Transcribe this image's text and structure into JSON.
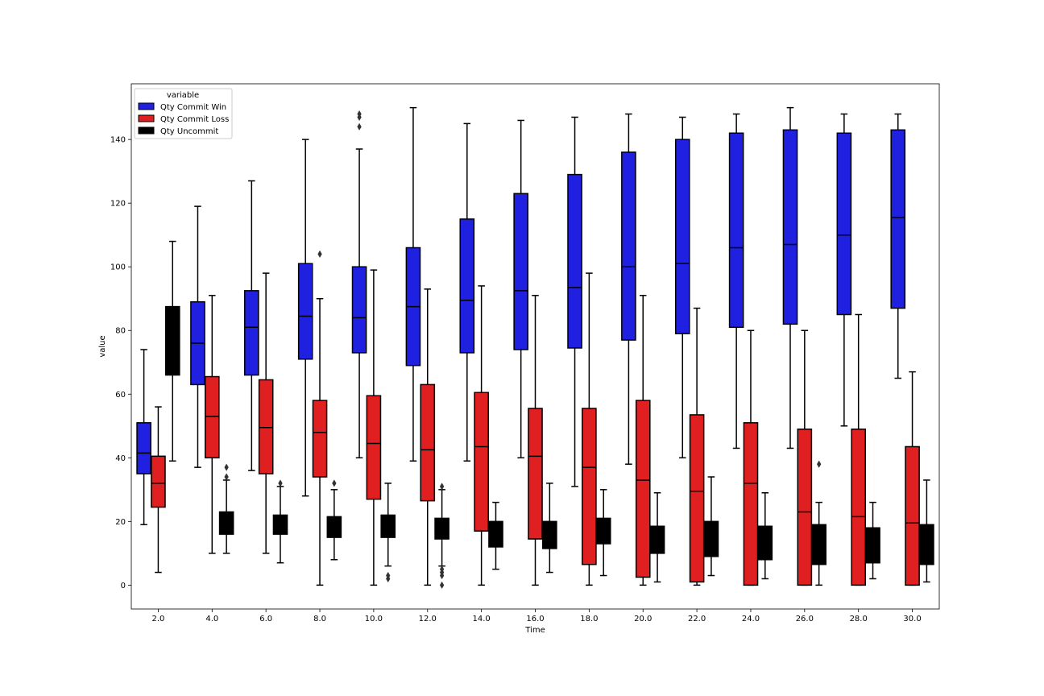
{
  "chart_data": {
    "type": "box",
    "xlabel": "Time",
    "ylabel": "value",
    "ylim": [
      -7.5,
      157.5
    ],
    "yticks": [
      0,
      20,
      40,
      60,
      80,
      100,
      120,
      140
    ],
    "categories": [
      "2.0",
      "4.0",
      "6.0",
      "8.0",
      "10.0",
      "12.0",
      "14.0",
      "16.0",
      "18.0",
      "20.0",
      "22.0",
      "24.0",
      "26.0",
      "28.0",
      "30.0"
    ],
    "legend": {
      "title": "variable",
      "placement": "top-left",
      "entries": [
        "Qty Commit Win",
        "Qty Commit Loss",
        "Qty Uncommit"
      ]
    },
    "series": [
      {
        "name": "Qty Commit Win",
        "color": "#2020e0",
        "boxes": [
          {
            "wlo": 19,
            "q1": 35,
            "med": 41.5,
            "q3": 51,
            "whi": 74,
            "fliers": []
          },
          {
            "wlo": 37,
            "q1": 63,
            "med": 76,
            "q3": 89,
            "whi": 119,
            "fliers": []
          },
          {
            "wlo": 36,
            "q1": 66,
            "med": 81,
            "q3": 92.5,
            "whi": 127,
            "fliers": []
          },
          {
            "wlo": 28,
            "q1": 71,
            "med": 84.5,
            "q3": 101,
            "whi": 140,
            "fliers": []
          },
          {
            "wlo": 40,
            "q1": 73,
            "med": 84,
            "q3": 100,
            "whi": 137,
            "fliers": [
              144,
              147,
              148
            ]
          },
          {
            "wlo": 39,
            "q1": 69,
            "med": 87.5,
            "q3": 106,
            "whi": 150,
            "fliers": []
          },
          {
            "wlo": 39,
            "q1": 73,
            "med": 89.5,
            "q3": 115,
            "whi": 145,
            "fliers": []
          },
          {
            "wlo": 40,
            "q1": 74,
            "med": 92.5,
            "q3": 123,
            "whi": 146,
            "fliers": []
          },
          {
            "wlo": 31,
            "q1": 74.5,
            "med": 93.5,
            "q3": 129,
            "whi": 147,
            "fliers": []
          },
          {
            "wlo": 38,
            "q1": 77,
            "med": 100,
            "q3": 136,
            "whi": 148,
            "fliers": []
          },
          {
            "wlo": 40,
            "q1": 79,
            "med": 101,
            "q3": 140,
            "whi": 147,
            "fliers": []
          },
          {
            "wlo": 43,
            "q1": 81,
            "med": 106,
            "q3": 142,
            "whi": 148,
            "fliers": []
          },
          {
            "wlo": 43,
            "q1": 82,
            "med": 107,
            "q3": 143,
            "whi": 150,
            "fliers": []
          },
          {
            "wlo": 50,
            "q1": 85,
            "med": 110,
            "q3": 142,
            "whi": 148,
            "fliers": []
          },
          {
            "wlo": 65,
            "q1": 87,
            "med": 115.5,
            "q3": 143,
            "whi": 148,
            "fliers": []
          }
        ]
      },
      {
        "name": "Qty Commit Loss",
        "color": "#e02020",
        "boxes": [
          {
            "wlo": 4,
            "q1": 24.5,
            "med": 32,
            "q3": 40.5,
            "whi": 56,
            "fliers": []
          },
          {
            "wlo": 10,
            "q1": 40,
            "med": 53,
            "q3": 65.5,
            "whi": 91,
            "fliers": []
          },
          {
            "wlo": 10,
            "q1": 35,
            "med": 49.5,
            "q3": 64.5,
            "whi": 98,
            "fliers": []
          },
          {
            "wlo": 0,
            "q1": 34,
            "med": 48,
            "q3": 58,
            "whi": 90,
            "fliers": [
              104
            ]
          },
          {
            "wlo": 0,
            "q1": 27,
            "med": 44.5,
            "q3": 59.5,
            "whi": 99,
            "fliers": []
          },
          {
            "wlo": 0,
            "q1": 26.5,
            "med": 42.5,
            "q3": 63,
            "whi": 93,
            "fliers": []
          },
          {
            "wlo": 0,
            "q1": 17,
            "med": 43.5,
            "q3": 60.5,
            "whi": 94,
            "fliers": []
          },
          {
            "wlo": 0,
            "q1": 14.5,
            "med": 40.5,
            "q3": 55.5,
            "whi": 91,
            "fliers": []
          },
          {
            "wlo": 0,
            "q1": 6.5,
            "med": 37,
            "q3": 55.5,
            "whi": 98,
            "fliers": []
          },
          {
            "wlo": 0,
            "q1": 2.5,
            "med": 33,
            "q3": 58,
            "whi": 91,
            "fliers": []
          },
          {
            "wlo": 0,
            "q1": 1,
            "med": 29.5,
            "q3": 53.5,
            "whi": 87,
            "fliers": []
          },
          {
            "wlo": 0,
            "q1": 0,
            "med": 32,
            "q3": 51,
            "whi": 80,
            "fliers": []
          },
          {
            "wlo": 0,
            "q1": 0,
            "med": 23,
            "q3": 49,
            "whi": 80,
            "fliers": []
          },
          {
            "wlo": 0,
            "q1": 0,
            "med": 21.5,
            "q3": 49,
            "whi": 85,
            "fliers": []
          },
          {
            "wlo": 0,
            "q1": 0,
            "med": 19.5,
            "q3": 43.5,
            "whi": 67,
            "fliers": []
          }
        ]
      },
      {
        "name": "Qty Uncommit",
        "color": "#000000",
        "boxes": [
          {
            "wlo": 39,
            "q1": 66,
            "med": 76.5,
            "q3": 87.5,
            "whi": 108,
            "fliers": []
          },
          {
            "wlo": 10,
            "q1": 16,
            "med": 19.5,
            "q3": 23,
            "whi": 33,
            "fliers": [
              34,
              37
            ]
          },
          {
            "wlo": 7,
            "q1": 16,
            "med": 19,
            "q3": 22,
            "whi": 31,
            "fliers": [
              32
            ]
          },
          {
            "wlo": 8,
            "q1": 15,
            "med": 18,
            "q3": 21.5,
            "whi": 30,
            "fliers": [
              32
            ]
          },
          {
            "wlo": 6,
            "q1": 15,
            "med": 18.5,
            "q3": 22,
            "whi": 32,
            "fliers": [
              2,
              3
            ]
          },
          {
            "wlo": 6,
            "q1": 14.5,
            "med": 17.5,
            "q3": 21,
            "whi": 30,
            "fliers": [
              0,
              3,
              4,
              5,
              31
            ]
          },
          {
            "wlo": 5,
            "q1": 12,
            "med": 16,
            "q3": 20,
            "whi": 26,
            "fliers": []
          },
          {
            "wlo": 4,
            "q1": 11.5,
            "med": 16,
            "q3": 20,
            "whi": 32,
            "fliers": []
          },
          {
            "wlo": 3,
            "q1": 13,
            "med": 17,
            "q3": 21,
            "whi": 30,
            "fliers": []
          },
          {
            "wlo": 1,
            "q1": 10,
            "med": 14,
            "q3": 18.5,
            "whi": 29,
            "fliers": []
          },
          {
            "wlo": 3,
            "q1": 9,
            "med": 15,
            "q3": 20,
            "whi": 34,
            "fliers": []
          },
          {
            "wlo": 2,
            "q1": 8,
            "med": 13,
            "q3": 18.5,
            "whi": 29,
            "fliers": []
          },
          {
            "wlo": 0,
            "q1": 6.5,
            "med": 14,
            "q3": 19,
            "whi": 26,
            "fliers": [
              38
            ]
          },
          {
            "wlo": 2,
            "q1": 7,
            "med": 12,
            "q3": 18,
            "whi": 26,
            "fliers": []
          },
          {
            "wlo": 1,
            "q1": 6.5,
            "med": 12,
            "q3": 19,
            "whi": 33,
            "fliers": []
          }
        ]
      }
    ]
  }
}
